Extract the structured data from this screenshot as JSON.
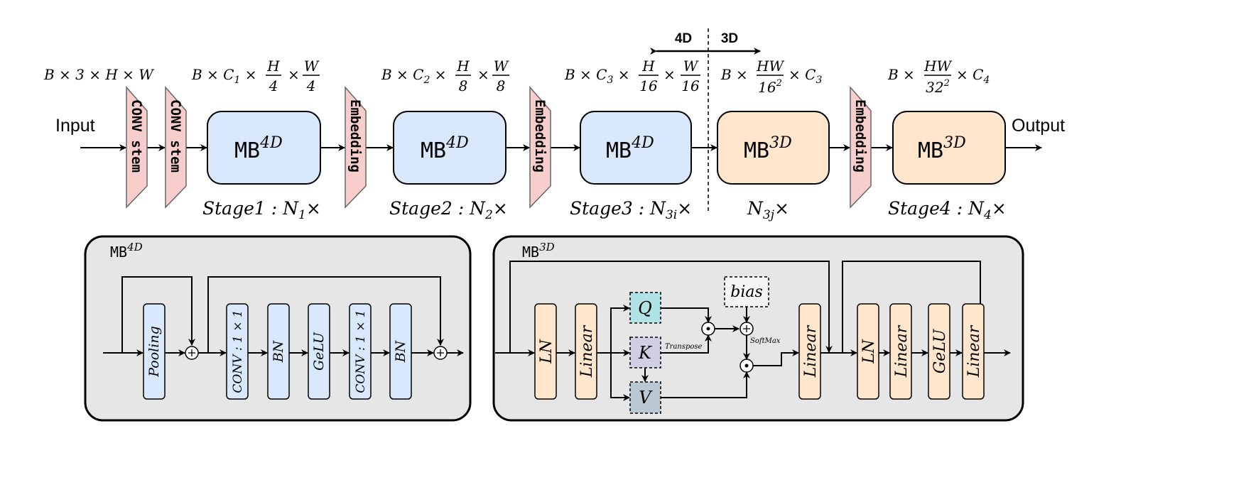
{
  "colors": {
    "mb4d": "#dae8fc",
    "mb3d": "#ffe6cc",
    "stem": "#f8cecc",
    "panel": "#e6e6e6",
    "q": "#b0e3e6",
    "k": "#d0cee2",
    "v": "#bac8d3",
    "bias": "#f5f5f5"
  },
  "top": {
    "input": "Input",
    "output": "Output",
    "stem": "CONV stem",
    "embedding": "Embedding",
    "mb": "MB",
    "sup4d": "4D",
    "sup3d": "3D",
    "region_4d": "4D",
    "region_3d": "3D",
    "dims": {
      "d0": "B × 3 × H × W",
      "b": "B ×",
      "times": "×",
      "c1": "C",
      "s1": "1",
      "c2": "C",
      "s2": "2",
      "c3": "C",
      "s3": "3",
      "c4": "C",
      "s4": "4",
      "h": "H",
      "w": "W",
      "hw": "HW",
      "n4": "4",
      "n8": "8",
      "n16": "16",
      "d16": "16",
      "d32": "32",
      "sq": "2"
    },
    "stages": {
      "stage1": "Stage1 : N",
      "sub1": "1",
      "stage2": "Stage2 : N",
      "sub2": "2",
      "stage3": "Stage3 : N",
      "sub3i": "3i",
      "n": "N",
      "sub3j": "3j",
      "stage4": "Stage4 : N",
      "sub4": "4",
      "times": "×"
    }
  },
  "mb4d_panel": {
    "title": "MB",
    "sup": "4D",
    "blocks": [
      "Pooling",
      "CONV : 1 × 1",
      "BN",
      "GeLU",
      "CONV : 1 × 1",
      "BN"
    ]
  },
  "mb3d_panel": {
    "title": "MB",
    "sup": "3D",
    "blocks": [
      "LN",
      "Linear",
      "Linear",
      "LN",
      "Linear",
      "GeLU",
      "Linear"
    ],
    "q": "Q",
    "k": "K",
    "v": "V",
    "bias": "bias",
    "transpose": "Transpose",
    "softmax": "SoftMax"
  }
}
